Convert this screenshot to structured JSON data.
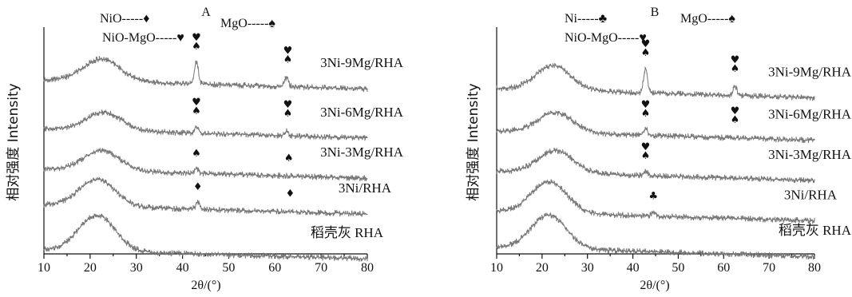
{
  "chart_data": [
    {
      "type": "line",
      "title": "A",
      "xlabel": "2θ/(°)",
      "ylabel": "相对强度 Intensity",
      "xlim": [
        10,
        80
      ],
      "xticks": [
        10,
        20,
        30,
        40,
        50,
        60,
        70,
        80
      ],
      "legend": [
        {
          "label": "NiO-----",
          "symbol": "♦"
        },
        {
          "label": "MgO-----",
          "symbol": "♠"
        },
        {
          "label": "NiO-MgO-----",
          "symbol": "♥"
        }
      ],
      "series": [
        {
          "name": "3Ni-9Mg/RHA",
          "base": 0.78,
          "hump_center": 22.5,
          "hump_height": 0.1,
          "peaks": [
            {
              "x": 43,
              "h": 0.1
            },
            {
              "x": 62.5,
              "h": 0.04
            }
          ],
          "markers": [
            {
              "x": 43,
              "symbols": [
                "♥",
                "♠"
              ]
            },
            {
              "x": 62.8,
              "symbols": [
                "♥",
                "♠"
              ]
            }
          ]
        },
        {
          "name": "3Ni-6Mg/RHA",
          "base": 0.56,
          "hump_center": 23,
          "hump_height": 0.08,
          "peaks": [
            {
              "x": 43,
              "h": 0.03
            },
            {
              "x": 62.5,
              "h": 0.02
            }
          ],
          "markers": [
            {
              "x": 43,
              "symbols": [
                "♥",
                "♠"
              ]
            },
            {
              "x": 62.8,
              "symbols": [
                "♥",
                "♠"
              ]
            }
          ]
        },
        {
          "name": "3Ni-3Mg/RHA",
          "base": 0.38,
          "hump_center": 22.5,
          "hump_height": 0.09,
          "peaks": [
            {
              "x": 43,
              "h": 0.02
            }
          ],
          "markers": [
            {
              "x": 43,
              "symbols": [
                "♠"
              ]
            },
            {
              "x": 63,
              "symbols": [
                "♠"
              ]
            }
          ]
        },
        {
          "name": "3Ni/RHA",
          "base": 0.22,
          "hump_center": 21.5,
          "hump_height": 0.12,
          "peaks": [
            {
              "x": 43.3,
              "h": 0.03
            }
          ],
          "markers": [
            {
              "x": 43.3,
              "symbols": [
                "♦"
              ]
            },
            {
              "x": 63.3,
              "symbols": [
                "♦"
              ]
            }
          ]
        },
        {
          "name": "稻壳灰 RHA",
          "base": 0.02,
          "hump_center": 21.5,
          "hump_height": 0.16,
          "peaks": [],
          "markers": []
        }
      ]
    },
    {
      "type": "line",
      "title": "B",
      "xlabel": "2θ/(°)",
      "ylabel": "相对强度 Intensity",
      "xlim": [
        10,
        80
      ],
      "xticks": [
        10,
        15,
        20,
        25,
        30,
        35,
        40,
        45,
        50,
        55,
        60,
        65,
        70,
        75,
        80
      ],
      "xtick_labels": [
        10,
        20,
        30,
        40,
        50,
        60,
        70,
        80
      ],
      "legend": [
        {
          "label": "Ni-----",
          "symbol": "♣"
        },
        {
          "label": "MgO-----",
          "symbol": "♠"
        },
        {
          "label": "NiO-MgO-----",
          "symbol": "♥"
        }
      ],
      "series": [
        {
          "name": "3Ni-9Mg/RHA",
          "base": 0.74,
          "hump_center": 22.5,
          "hump_height": 0.11,
          "peaks": [
            {
              "x": 42.8,
              "h": 0.11
            },
            {
              "x": 62.5,
              "h": 0.04
            }
          ],
          "markers": [
            {
              "x": 42.8,
              "symbols": [
                "♥",
                "♠"
              ]
            },
            {
              "x": 62.5,
              "symbols": [
                "♥",
                "♠"
              ]
            }
          ]
        },
        {
          "name": "3Ni-6Mg/RHA",
          "base": 0.55,
          "hump_center": 23,
          "hump_height": 0.09,
          "peaks": [
            {
              "x": 42.8,
              "h": 0.03
            }
          ],
          "markers": [
            {
              "x": 42.8,
              "symbols": [
                "♥",
                "♠"
              ]
            },
            {
              "x": 62.5,
              "symbols": [
                "♥",
                "♠"
              ]
            }
          ]
        },
        {
          "name": "3Ni-3Mg/RHA",
          "base": 0.37,
          "hump_center": 23,
          "hump_height": 0.1,
          "peaks": [
            {
              "x": 42.8,
              "h": 0.02
            }
          ],
          "markers": [
            {
              "x": 42.8,
              "symbols": [
                "♥",
                "♠"
              ]
            }
          ]
        },
        {
          "name": "3Ni/RHA",
          "base": 0.19,
          "hump_center": 21.5,
          "hump_height": 0.14,
          "peaks": [
            {
              "x": 44.5,
              "h": 0.02
            }
          ],
          "markers": [
            {
              "x": 44.5,
              "symbols": [
                "♣"
              ]
            }
          ]
        },
        {
          "name": "稻壳灰 RHA",
          "base": 0.03,
          "hump_center": 21.5,
          "hump_height": 0.15,
          "peaks": [],
          "markers": []
        }
      ]
    }
  ]
}
